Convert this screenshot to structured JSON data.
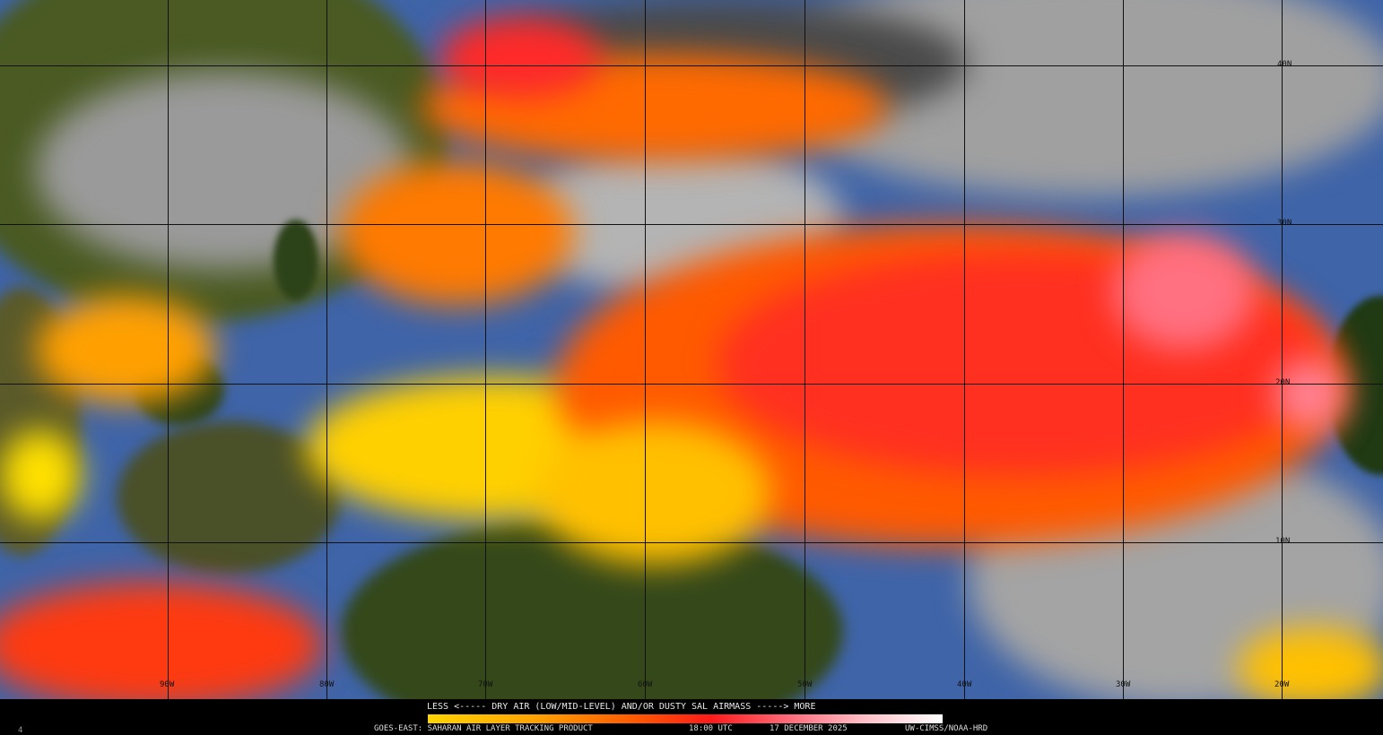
{
  "map": {
    "longitude_labels": [
      "90W",
      "80W",
      "70W",
      "60W",
      "50W",
      "40W",
      "30W",
      "20W"
    ],
    "latitude_labels": [
      "40N",
      "30N",
      "20N",
      "10N"
    ]
  },
  "legend": {
    "title": "LESS <----- DRY AIR (LOW/MID-LEVEL) AND/OR DUSTY SAL AIRMASS -----> MORE",
    "colors": [
      "#ffd400",
      "#ffa500",
      "#ff5a00",
      "#ff1a1a",
      "#ff6a7a",
      "#ffc0c8",
      "#ffffff"
    ]
  },
  "footer": {
    "corner_mark": "4",
    "product": "GOES-EAST: SAHARAN AIR LAYER TRACKING PRODUCT",
    "time": "18:00 UTC",
    "date": "17 DECEMBER 2025",
    "credit": "UW-CIMSS/NOAA-HRD"
  },
  "colors": {
    "land": "#3a4a1c",
    "ocean": "#3f64a8",
    "cloud": "#a8a8a8",
    "sal_low": "#ffd400",
    "sal_high": "#ff2020"
  }
}
